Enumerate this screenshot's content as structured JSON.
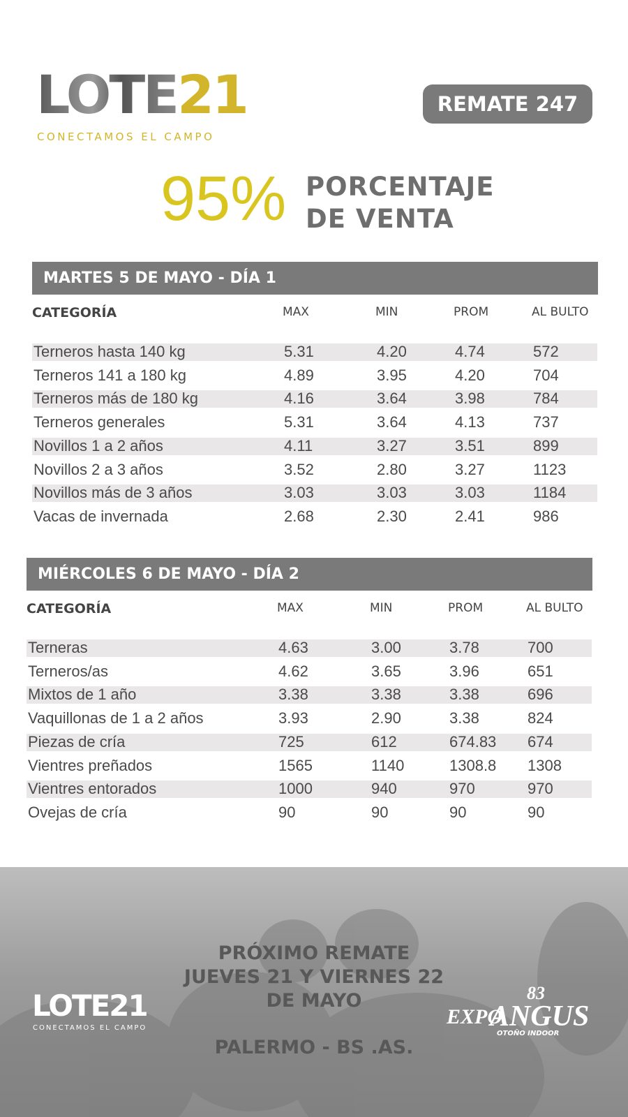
{
  "header": {
    "logo": "LOTE",
    "logo_number": "21",
    "tagline": "CONECTAMOS EL CAMPO",
    "badge": "REMATE 247"
  },
  "summary": {
    "percent": "95%",
    "label_line1": "PORCENTAJE",
    "label_line2": "DE VENTA"
  },
  "tables": [
    {
      "title": "MARTES 5 DE MAYO - DÍA 1",
      "columns": [
        "CATEGORÍA",
        "MAX",
        "MIN",
        "PROM",
        "AL BULTO"
      ],
      "rows": [
        [
          "Terneros hasta 140 kg",
          "5.31",
          "4.20",
          "4.74",
          "572"
        ],
        [
          "Terneros 141 a 180 kg",
          "4.89",
          "3.95",
          "4.20",
          "704"
        ],
        [
          "Terneros más de 180 kg",
          "4.16",
          "3.64",
          "3.98",
          "784"
        ],
        [
          "Terneros generales",
          "5.31",
          "3.64",
          "4.13",
          "737"
        ],
        [
          "Novillos 1 a 2 años",
          "4.11",
          "3.27",
          "3.51",
          "899"
        ],
        [
          "Novillos 2 a 3 años",
          "3.52",
          "2.80",
          "3.27",
          "1123"
        ],
        [
          "Novillos más de 3 años",
          "3.03",
          "3.03",
          "3.03",
          "1184"
        ],
        [
          "Vacas de invernada",
          "2.68",
          "2.30",
          "2.41",
          "986"
        ]
      ]
    },
    {
      "title": "MIÉRCOLES 6 DE MAYO - DÍA 2",
      "columns": [
        "CATEGORÍA",
        "MAX",
        "MIN",
        "PROM",
        "AL BULTO"
      ],
      "rows": [
        [
          "Terneras",
          "4.63",
          "3.00",
          "3.78",
          "700"
        ],
        [
          "Terneros/as",
          "4.62",
          "3.65",
          "3.96",
          "651"
        ],
        [
          "Mixtos de 1 año",
          "3.38",
          "3.38",
          "3.38",
          "696"
        ],
        [
          "Vaquillonas de 1 a 2 años",
          "3.93",
          "2.90",
          "3.38",
          "824"
        ],
        [
          "Piezas de cría",
          "725",
          "612",
          "674.83",
          "674"
        ],
        [
          "Vientres preñados",
          "1565",
          "1140",
          "1308.8",
          "1308"
        ],
        [
          "Vientres entorados",
          "1000",
          "940",
          "970",
          "970"
        ],
        [
          "Ovejas de cría",
          "90",
          "90",
          "90",
          "90"
        ]
      ]
    }
  ],
  "footer": {
    "logo": "LOTE21",
    "tagline": "CONECTAMOS EL CAMPO",
    "next_label": "PRÓXIMO REMATE",
    "date_line1": "JUEVES 21 Y VIERNES 22",
    "date_line2": "DE MAYO",
    "place": "PALERMO - BS .AS.",
    "expo_number": "83",
    "expo_prefix": "EXPO",
    "expo_name": "ANGUS",
    "expo_sub": "OTOÑO INDOOR"
  }
}
